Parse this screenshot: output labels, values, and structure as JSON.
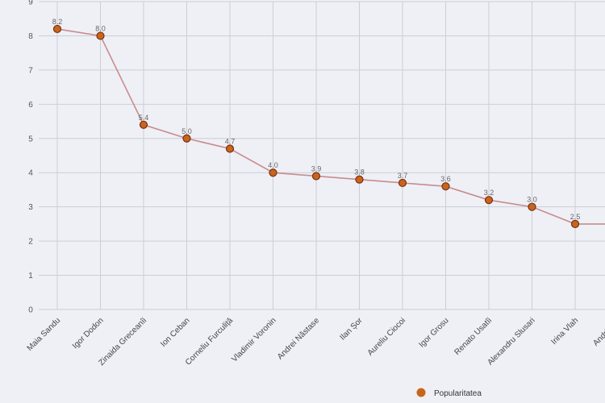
{
  "chart_data": {
    "type": "line",
    "categories": [
      "Maia Sandu",
      "Igor Dodon",
      "Zinaida Greceanîi",
      "Ion Ceban",
      "Corneliu Furculiță",
      "Vladimir Voronin",
      "Andrei Năstase",
      "Ilan Șor",
      "Aureliu Ciocoi",
      "Igor Grosu",
      "Renato Usatîi",
      "Alexandru Slusari",
      "Irina Vlah",
      "Andrian C"
    ],
    "series": [
      {
        "name": "Popularitatea",
        "values": [
          8.2,
          8.0,
          5.4,
          5.0,
          4.7,
          4.0,
          3.9,
          3.8,
          3.7,
          3.6,
          3.2,
          3.0,
          2.5,
          2.5
        ]
      }
    ],
    "value_labels": [
      "8.2",
      "8.0",
      "5.4",
      "5.0",
      "4.7",
      "4.0",
      "3.9",
      "3.8",
      "3.7",
      "3.6",
      "3.2",
      "3.0",
      "2.5",
      ""
    ],
    "y_ticks": [
      "0",
      "1",
      "2",
      "3",
      "4",
      "5",
      "6",
      "7",
      "8",
      "9"
    ],
    "ylim": [
      0,
      9
    ],
    "grid": true,
    "legend": "bottom-center",
    "colors": {
      "line": "#c98c8c",
      "marker_fill": "#c8651c",
      "marker_stroke": "#7a2e14",
      "grid": "#c9cfd6",
      "axis": "#555555"
    }
  }
}
